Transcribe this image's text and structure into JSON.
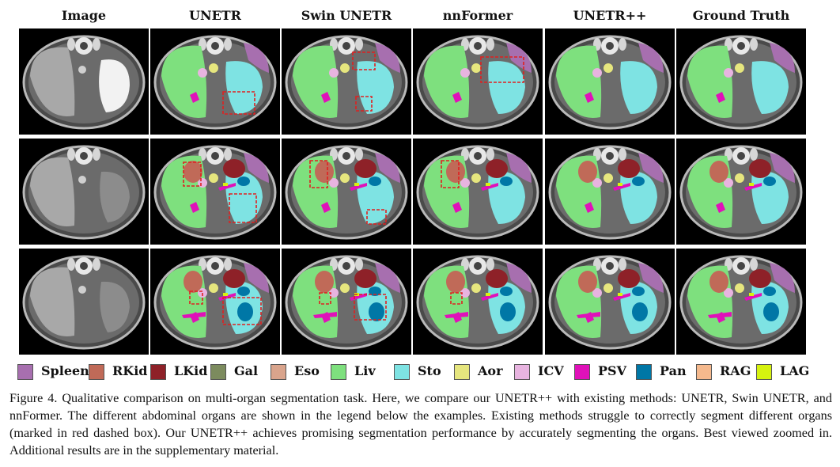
{
  "figure": {
    "columns": [
      "Image",
      "UNETR",
      "Swin UNETR",
      "nnFormer",
      "UNETR++",
      "Ground Truth"
    ],
    "legend": [
      {
        "label": "Spleen",
        "color": "#A76FAF"
      },
      {
        "label": "RKid",
        "color": "#C06A58"
      },
      {
        "label": "LKid",
        "color": "#8E2128"
      },
      {
        "label": "Gal",
        "color": "#7C8B5E"
      },
      {
        "label": "Eso",
        "color": "#D9A48C"
      },
      {
        "label": "Liv",
        "color": "#7EE07E"
      },
      {
        "label": "Sto",
        "color": "#7EE3E3"
      },
      {
        "label": "Aor",
        "color": "#E6E67E"
      },
      {
        "label": "ICV",
        "color": "#E8B4E0"
      },
      {
        "label": "PSV",
        "color": "#E011B9"
      },
      {
        "label": "Pan",
        "color": "#0077A6"
      },
      {
        "label": "RAG",
        "color": "#F5B98D"
      },
      {
        "label": "LAG",
        "color": "#D6F20F"
      }
    ],
    "caption": "Figure 4. Qualitative comparison on multi-organ segmentation task. Here, we compare our UNETR++ with existing methods: UNETR, Swin UNETR, and nnFormer. The different abdominal organs are shown in the legend below the examples. Existing methods struggle to correctly segment different organs (marked in red dashed box). Our UNETR++ achieves promising segmentation performance by accurately segmenting the organs. Best viewed zoomed in. Additional results are in the supplementary material.",
    "error_box_color": "#E02020"
  }
}
